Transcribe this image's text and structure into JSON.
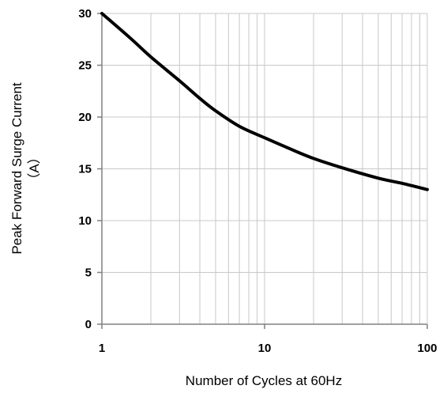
{
  "chart_data": {
    "type": "line",
    "title": "",
    "xlabel": "Number of Cycles at 60Hz",
    "ylabel_line1": "Peak Forward Surge Current",
    "ylabel_line2": "（A）",
    "x_scale": "log",
    "xlim": [
      1,
      100
    ],
    "ylim": [
      0,
      30
    ],
    "x_ticks": [
      1,
      10,
      100
    ],
    "x_tick_labels": [
      "1",
      "10",
      "100"
    ],
    "y_ticks": [
      0,
      5,
      10,
      15,
      20,
      25,
      30
    ],
    "y_tick_labels": [
      "0",
      "5",
      "10",
      "15",
      "20",
      "25",
      "30"
    ],
    "grid": true,
    "colors": {
      "line": "#000000",
      "grid": "#c8c8c8",
      "axis": "#808080"
    },
    "series": [
      {
        "x": [
          1,
          1.5,
          2,
          3,
          4,
          5,
          7,
          10,
          15,
          20,
          30,
          50,
          70,
          100
        ],
        "y": [
          30,
          27.6,
          25.8,
          23.5,
          21.8,
          20.6,
          19.1,
          18.0,
          16.8,
          16.0,
          15.1,
          14.1,
          13.6,
          13.0
        ]
      }
    ]
  }
}
